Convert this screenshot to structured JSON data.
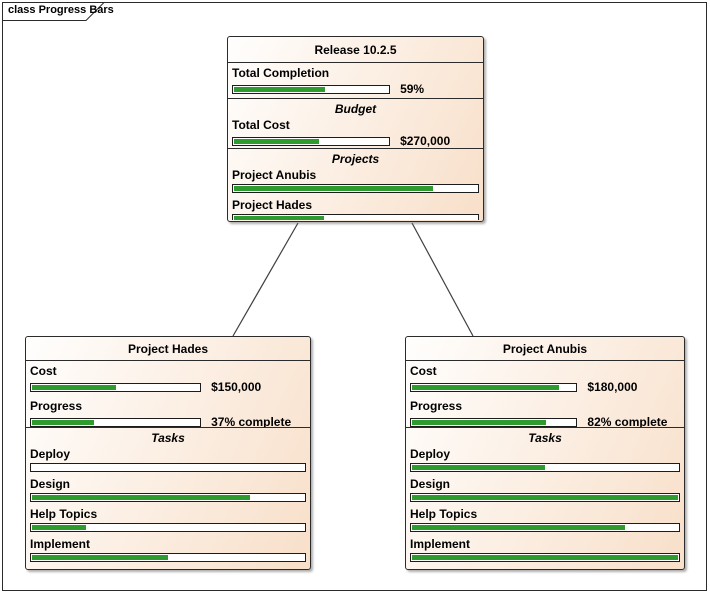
{
  "diagram": {
    "frame_label": "class Progress Bars"
  },
  "colors": {
    "bar_fill": "#2d9b2d",
    "node_border": "#2b2b2b",
    "connector": "#3f3f3f",
    "node_gradient_start": "#fffefd",
    "node_gradient_end": "#f8dfc9"
  },
  "nodes": [
    {
      "title": "Release 10.2.5",
      "sections": [
        {
          "heading": "",
          "items": [
            {
              "label": "Total Completion",
              "percent": 59,
              "value": "59%"
            }
          ]
        },
        {
          "heading": "Budget",
          "items": [
            {
              "label": "Total Cost",
              "percent": 55,
              "value": "$270,000"
            }
          ]
        },
        {
          "heading": "Projects",
          "items": [
            {
              "label": "Project Anubis",
              "percent": 82,
              "value": ""
            },
            {
              "label": "Project Hades",
              "percent": 37,
              "value": ""
            }
          ]
        }
      ]
    },
    {
      "title": "Project Hades",
      "sections": [
        {
          "heading": "",
          "items": [
            {
              "label": "Cost",
              "percent": 50,
              "value": "$150,000"
            },
            {
              "label": "Progress",
              "percent": 37,
              "value": "37% complete"
            }
          ]
        },
        {
          "heading": "Tasks",
          "items": [
            {
              "label": "Deploy",
              "percent": 0,
              "value": ""
            },
            {
              "label": "Design",
              "percent": 80,
              "value": ""
            },
            {
              "label": "Help Topics",
              "percent": 20,
              "value": ""
            },
            {
              "label": "Implement",
              "percent": 50,
              "value": ""
            }
          ]
        }
      ]
    },
    {
      "title": "Project Anubis",
      "sections": [
        {
          "heading": "",
          "items": [
            {
              "label": "Cost",
              "percent": 90,
              "value": "$180,000"
            },
            {
              "label": "Progress",
              "percent": 82,
              "value": "82% complete"
            }
          ]
        },
        {
          "heading": "Tasks",
          "items": [
            {
              "label": "Deploy",
              "percent": 50,
              "value": ""
            },
            {
              "label": "Design",
              "percent": 100,
              "value": ""
            },
            {
              "label": "Help Topics",
              "percent": 80,
              "value": ""
            },
            {
              "label": "Implement",
              "percent": 100,
              "value": ""
            }
          ]
        }
      ]
    }
  ]
}
